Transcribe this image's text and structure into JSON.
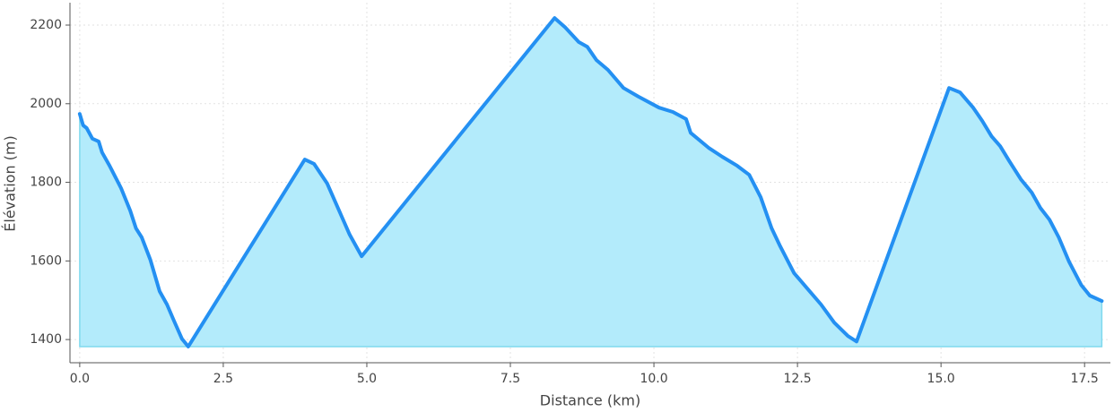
{
  "chart_data": {
    "type": "area",
    "xlabel": "Distance (km)",
    "ylabel": "Élévation (m)",
    "x": [
      0,
      0.06,
      0.12,
      0.22,
      0.33,
      0.39,
      0.52,
      0.72,
      0.88,
      0.98,
      1.08,
      1.23,
      1.39,
      1.52,
      1.64,
      1.78,
      1.89,
      3.92,
      4.08,
      4.31,
      4.55,
      4.7,
      4.91,
      8.27,
      8.45,
      8.69,
      8.84,
      9.0,
      9.2,
      9.47,
      9.73,
      10.09,
      10.33,
      10.56,
      10.64,
      10.95,
      11.19,
      11.45,
      11.66,
      11.86,
      12.05,
      12.2,
      12.44,
      12.67,
      12.91,
      13.14,
      13.38,
      13.53,
      15.14,
      15.33,
      15.56,
      15.72,
      15.88,
      16.03,
      16.19,
      16.39,
      16.58,
      16.73,
      16.89,
      17.05,
      17.23,
      17.44,
      17.59,
      17.8
    ],
    "values": [
      1974,
      1945,
      1938,
      1911,
      1904,
      1876,
      1842,
      1785,
      1728,
      1683,
      1660,
      1603,
      1523,
      1489,
      1448,
      1402,
      1382,
      1858,
      1847,
      1797,
      1717,
      1667,
      1612,
      2218,
      2195,
      2157,
      2145,
      2111,
      2086,
      2040,
      2018,
      1990,
      1979,
      1961,
      1926,
      1888,
      1865,
      1842,
      1819,
      1762,
      1683,
      1637,
      1569,
      1530,
      1489,
      1443,
      1409,
      1395,
      2040,
      2029,
      1990,
      1956,
      1917,
      1892,
      1854,
      1808,
      1774,
      1735,
      1705,
      1660,
      1598,
      1539,
      1512,
      1498
    ],
    "color": "#2490f2",
    "fill_color": "#b3ebfb",
    "xlim": [
      -0.17,
      17.95
    ],
    "ylim": [
      1341,
      2257
    ],
    "xticks": [
      {
        "value": 0,
        "label": "0.0"
      },
      {
        "value": 2.5,
        "label": "2.5"
      },
      {
        "value": 5,
        "label": "5.0"
      },
      {
        "value": 7.5,
        "label": "7.5"
      },
      {
        "value": 10,
        "label": "10.0"
      },
      {
        "value": 12.5,
        "label": "12.5"
      },
      {
        "value": 15,
        "label": "15.0"
      },
      {
        "value": 17.5,
        "label": "17.5"
      }
    ],
    "yticks": [
      1400,
      1600,
      1800,
      2000,
      2200
    ],
    "grid": true
  }
}
